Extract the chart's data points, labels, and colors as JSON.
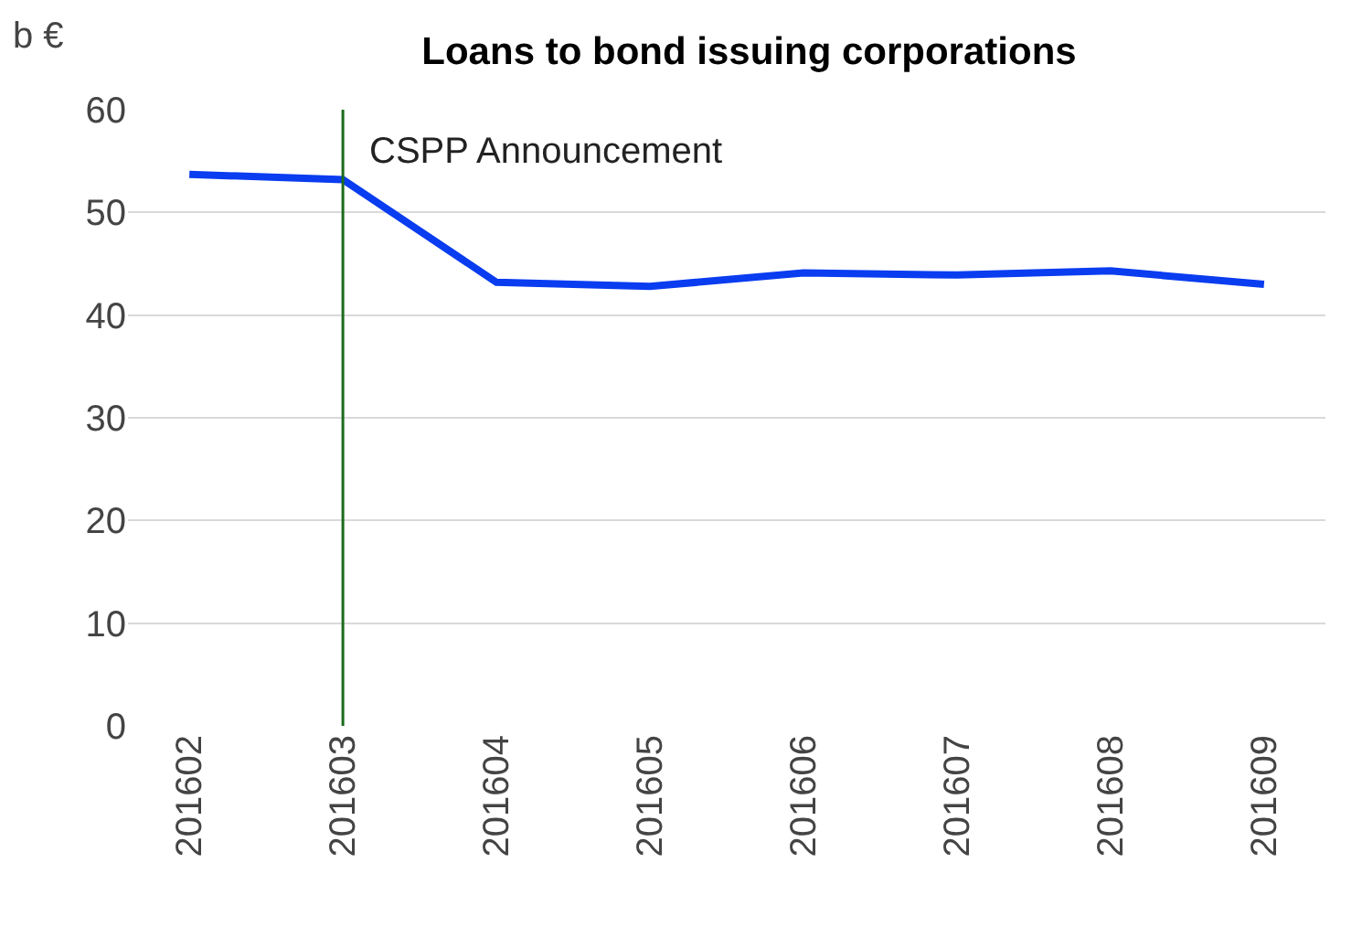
{
  "chart_data": {
    "type": "line",
    "title": "Loans to bond issuing corporations",
    "ylabel": "b €",
    "categories": [
      "201602",
      "201603",
      "201604",
      "201605",
      "201606",
      "201607",
      "201608",
      "201609"
    ],
    "series": [
      {
        "color": "#0a3cf0",
        "values": [
          53.7,
          53.2,
          43.2,
          42.8,
          44.1,
          43.9,
          44.3,
          43.0
        ]
      }
    ],
    "ylim": [
      0,
      60
    ],
    "yticks": [
      0,
      10,
      20,
      30,
      40,
      50,
      60
    ],
    "grid": "y",
    "marker": "none",
    "line_style": "solid",
    "ref_lines": [
      {
        "axis": "x",
        "value": "201603",
        "label": "CSPP Announcement",
        "color": "#1a6b1a"
      }
    ]
  }
}
